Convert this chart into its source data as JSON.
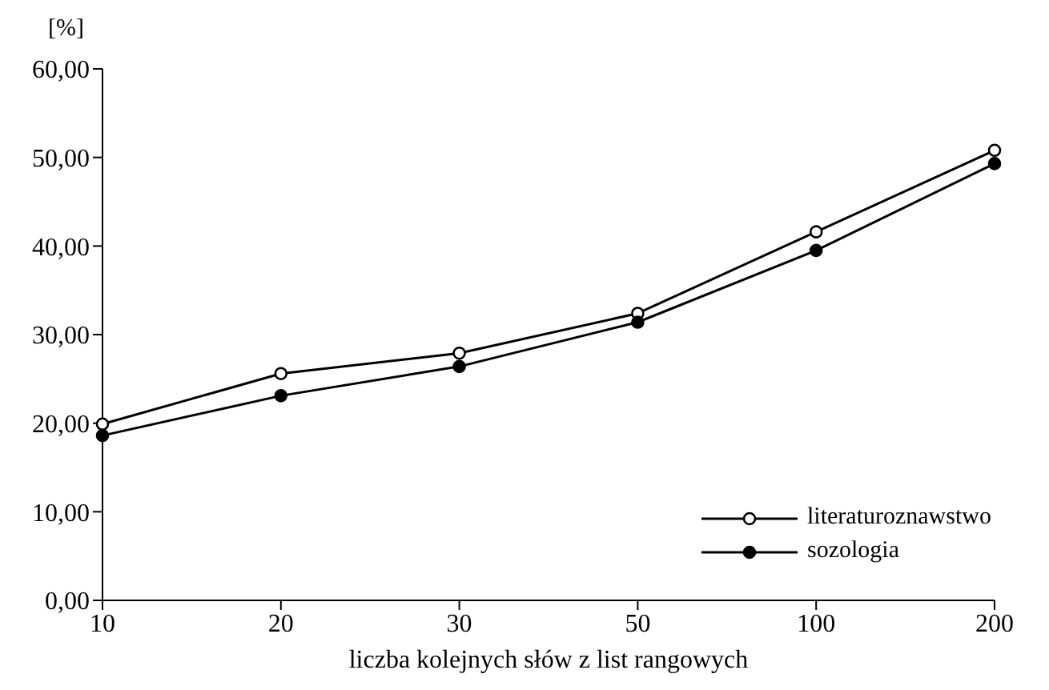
{
  "chart_data": {
    "type": "line",
    "ylabel": "[%]",
    "xlabel": "liczba kolejnych słów z list rangowych",
    "categories": [
      "10",
      "20",
      "30",
      "50",
      "100",
      "200"
    ],
    "series": [
      {
        "name": "literaturoznawstwo",
        "color": "#000000",
        "values": [
          19.9,
          25.6,
          27.9,
          32.4,
          41.6,
          50.8
        ]
      },
      {
        "name": "sozologia",
        "color": "#000000",
        "values": [
          18.6,
          23.1,
          26.4,
          31.4,
          39.5,
          49.3
        ]
      }
    ],
    "ylim": [
      0,
      60
    ],
    "yticks": [
      {
        "value": 0,
        "label": "0,00"
      },
      {
        "value": 10,
        "label": "10,00"
      },
      {
        "value": 20,
        "label": "20,00"
      },
      {
        "value": 30,
        "label": "30,00"
      },
      {
        "value": 40,
        "label": "40,00"
      },
      {
        "value": 50,
        "label": "50,00"
      },
      {
        "value": 60,
        "label": "60,00"
      }
    ],
    "grid": false,
    "legend": "bottom right",
    "marker": "circle",
    "line_style": "solid"
  }
}
